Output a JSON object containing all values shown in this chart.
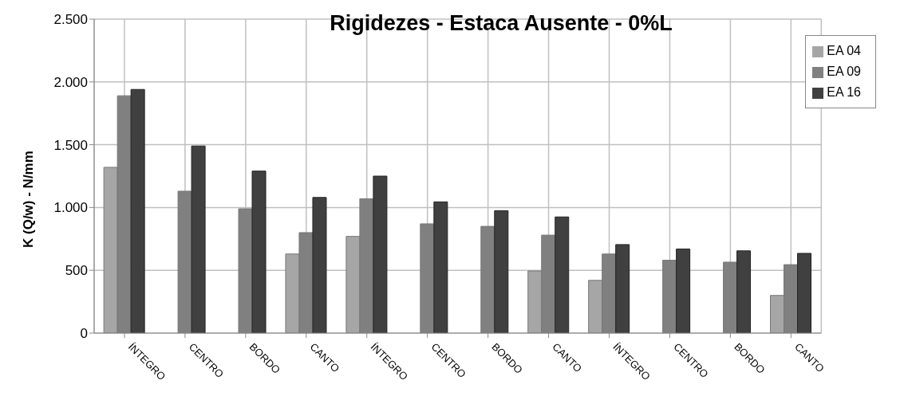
{
  "chart_data": {
    "type": "bar",
    "title": "Rigidezes - Estaca Ausente - 0%L",
    "ylabel": "K (Q/w) - N/mm",
    "categories": [
      "ÍNTEGRO",
      "CENTRO",
      "BORDO",
      "CANTO",
      "ÍNTEGRO",
      "CENTRO",
      "BORDO",
      "CANTO",
      "ÍNTEGRO",
      "CENTRO",
      "BORDO",
      "CANTO"
    ],
    "series": [
      {
        "name": "EA 04",
        "color": "#a6a6a6",
        "values": [
          1320,
          null,
          null,
          630,
          770,
          null,
          null,
          495,
          420,
          null,
          null,
          300
        ]
      },
      {
        "name": "EA 09",
        "color": "#808080",
        "values": [
          1890,
          1130,
          990,
          800,
          1070,
          870,
          850,
          780,
          630,
          580,
          565,
          545
        ]
      },
      {
        "name": "EA 16",
        "color": "#404040",
        "values": [
          1940,
          1490,
          1290,
          1080,
          1250,
          1045,
          975,
          925,
          705,
          670,
          655,
          635
        ]
      }
    ],
    "ylim": [
      0,
      2500
    ],
    "yticks": [
      0,
      {
        "value": 500,
        "label": "500"
      },
      {
        "value": 1000,
        "label": "1.000"
      },
      {
        "value": 1500,
        "label": "1.500"
      },
      {
        "value": 2000,
        "label": "2.000"
      },
      {
        "value": 2500,
        "label": "2.500"
      }
    ],
    "grid": true,
    "legend": "top right"
  }
}
